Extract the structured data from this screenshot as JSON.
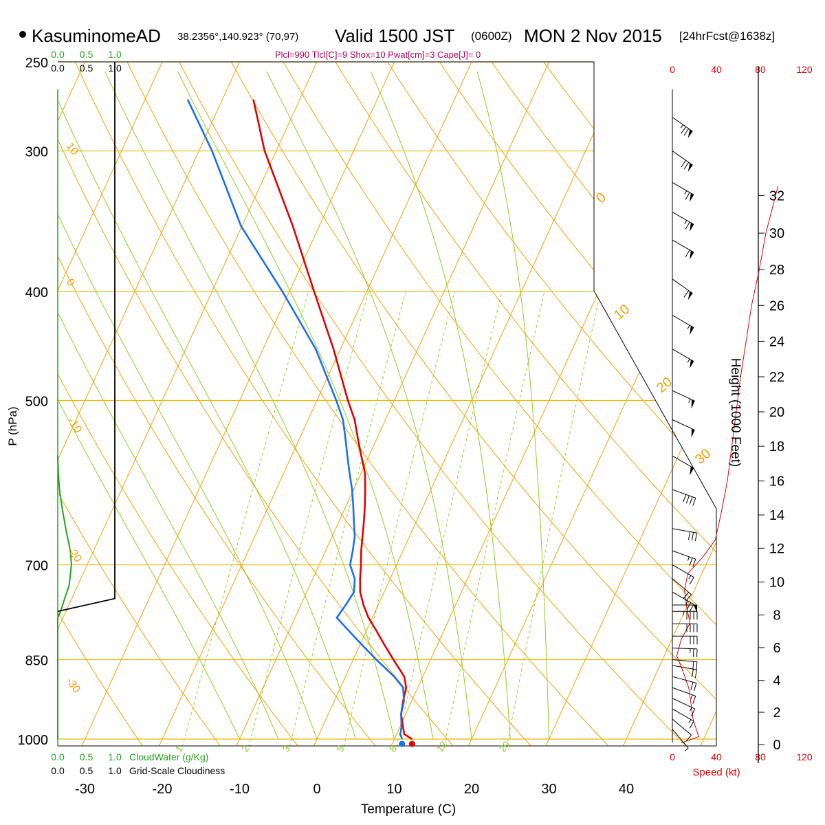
{
  "header": {
    "station": "KasuminomeAD",
    "coords": "38.2356°,140.923° (70,97)",
    "valid": "Valid 1500 JST",
    "utc": "(0600Z)",
    "date": "MON 2 Nov 2015",
    "forecast": "[24hrFcst@1638z]",
    "indices": "Plcl=990 Tlcl[C]=9 Shox=10 Pwat[cm]=3 Cape[J]= 0"
  },
  "labels": {
    "xlabel": "Temperature (C)",
    "ylabel": "P (hPa)",
    "height_label": "Height (1000 Feet)",
    "speed_label": "Speed (kt)",
    "cloudwater_label": "CloudWater (g/Kg)",
    "cloudiness_label": "Grid-Scale Cloudiness"
  },
  "colors": {
    "isobar": "#e8b800",
    "isotherm": "#f0a000",
    "dry_adiabat": "#f0a000",
    "moist_adiabat": "#8ccf20",
    "mixing_ratio": "#8ccf20",
    "temperature": "#e00000",
    "dewpoint": "#1a6ef0",
    "cloudwater": "#1ea51e",
    "speed": "#e00000",
    "title_secondary": "#b0005a"
  },
  "chart_data": {
    "type": "line",
    "subtype": "skew-T log-P sounding",
    "xlim": [
      -30,
      40
    ],
    "ylim": [
      1000,
      250
    ],
    "x_ticks": [
      "-30",
      "-20",
      "-10",
      "0",
      "10",
      "20",
      "30",
      "40"
    ],
    "y_ticks": [
      "250",
      "300",
      "400",
      "500",
      "700",
      "850",
      "1000"
    ],
    "series": [
      {
        "name": "",
        "pressure": [
          1000,
          990,
          975,
          950,
          925,
          900,
          880,
          850,
          825,
          800,
          780,
          760,
          740,
          720,
          700,
          680,
          660,
          640,
          620,
          600,
          580,
          560,
          540,
          520,
          500,
          450,
          400,
          350,
          300,
          270
        ],
        "values": [
          12.3,
          11.0,
          10.4,
          9.4,
          8.9,
          8.5,
          7.6,
          5.2,
          3.2,
          1.2,
          -0.5,
          -1.9,
          -3.1,
          -3.9,
          -4.6,
          -5.4,
          -6.1,
          -6.8,
          -7.6,
          -8.5,
          -9.5,
          -11.0,
          -12.5,
          -14.0,
          -16.0,
          -20.9,
          -26.8,
          -33.4,
          -41.5,
          -46.0
        ]
      },
      {
        "name": "",
        "pressure": [
          1000,
          990,
          975,
          950,
          925,
          900,
          880,
          850,
          825,
          800,
          780,
          760,
          740,
          720,
          700,
          680,
          660,
          640,
          620,
          600,
          580,
          560,
          540,
          520,
          500,
          450,
          400,
          350,
          300,
          270
        ],
        "values": [
          11.0,
          10.5,
          10.2,
          9.4,
          9.0,
          8.1,
          6.3,
          3.0,
          0.3,
          -2.4,
          -4.6,
          -4.2,
          -3.9,
          -4.6,
          -6.0,
          -6.5,
          -7.1,
          -8.1,
          -9.1,
          -10.2,
          -11.5,
          -12.8,
          -14.1,
          -15.5,
          -17.5,
          -23.2,
          -30.9,
          -40.1,
          -48.3,
          -54.5
        ]
      }
    ],
    "isotherms_step": 10,
    "dry_adiabats_theta_K": [
      250,
      260,
      270,
      280,
      290,
      300,
      310,
      320,
      330,
      340,
      350,
      360,
      370,
      380,
      390,
      400,
      410,
      420,
      430,
      440,
      450,
      460
    ],
    "moist_adiabats_C": [
      -10,
      -5,
      0,
      5,
      10,
      15,
      20,
      25,
      30
    ],
    "mixing_ratio_g_kg": [
      1,
      2,
      3,
      5,
      8,
      12,
      20
    ],
    "mixing_ratio_labels": [
      "1",
      "2",
      "3",
      "5",
      "8",
      "12",
      "20"
    ],
    "theta_labels_left": [
      "10",
      "0",
      "-10",
      "-20",
      "-30"
    ],
    "theta_labels_right": [
      "0",
      "10",
      "20",
      "30"
    ],
    "cloudwater": {
      "axis_ticks": [
        "0.0",
        "0.5",
        "1.0"
      ],
      "pressure": [
        1000,
        780,
        770,
        750,
        730,
        700,
        680,
        650,
        620,
        600,
        580,
        560
      ],
      "values": [
        0,
        0,
        0.05,
        0.12,
        0.2,
        0.24,
        0.22,
        0.14,
        0.07,
        0.03,
        0.01,
        0
      ]
    },
    "cloudiness": {
      "axis_ticks": [
        "0.0",
        "0.5",
        "1.0"
      ],
      "pressure": [
        770,
        750,
        520,
        250
      ],
      "values": [
        0,
        1,
        1,
        1
      ]
    },
    "height_axis": {
      "ticks": [
        "0",
        "2",
        "4",
        "6",
        "8",
        "10",
        "12",
        "14",
        "16",
        "18",
        "20",
        "22",
        "24",
        "26",
        "28",
        "30",
        "32"
      ],
      "pressure": [
        1000,
        936,
        877,
        820,
        767,
        717,
        669,
        625,
        583,
        543,
        506,
        471,
        438,
        407,
        378,
        351,
        325
      ]
    },
    "wind_speed": {
      "axis_ticks": [
        "0",
        "40",
        "80",
        "120"
      ],
      "height_kft": [
        0.1,
        0.5,
        1.5,
        2.5,
        3.5,
        4.5,
        5.5,
        6.5,
        7.5,
        8.5,
        9.5,
        10.5,
        11.5,
        12.5,
        14,
        16,
        18,
        20,
        22,
        24,
        26,
        28,
        30,
        32.5
      ],
      "values": [
        8,
        24,
        19,
        17,
        15,
        10,
        4,
        8,
        16,
        13,
        11,
        14,
        28,
        39,
        44,
        50,
        54,
        58,
        62,
        67,
        72,
        79,
        85,
        96
      ]
    },
    "wind_barbs": {
      "pressure": [
        980,
        960,
        940,
        920,
        900,
        880,
        860,
        850,
        830,
        810,
        790,
        770,
        760,
        740,
        720,
        700,
        680,
        650,
        600,
        560,
        520,
        490,
        450,
        420,
        390,
        360,
        340,
        320,
        300,
        280
      ],
      "direction_deg": [
        320,
        310,
        300,
        295,
        290,
        285,
        280,
        275,
        272,
        270,
        270,
        270,
        270,
        300,
        310,
        300,
        290,
        280,
        290,
        300,
        295,
        295,
        300,
        300,
        305,
        300,
        300,
        300,
        305,
        305
      ],
      "speed_kt": [
        5,
        10,
        15,
        15,
        15,
        20,
        20,
        20,
        25,
        30,
        40,
        45,
        50,
        25,
        20,
        15,
        25,
        30,
        40,
        50,
        50,
        55,
        55,
        55,
        60,
        60,
        65,
        65,
        70,
        75
      ]
    }
  }
}
